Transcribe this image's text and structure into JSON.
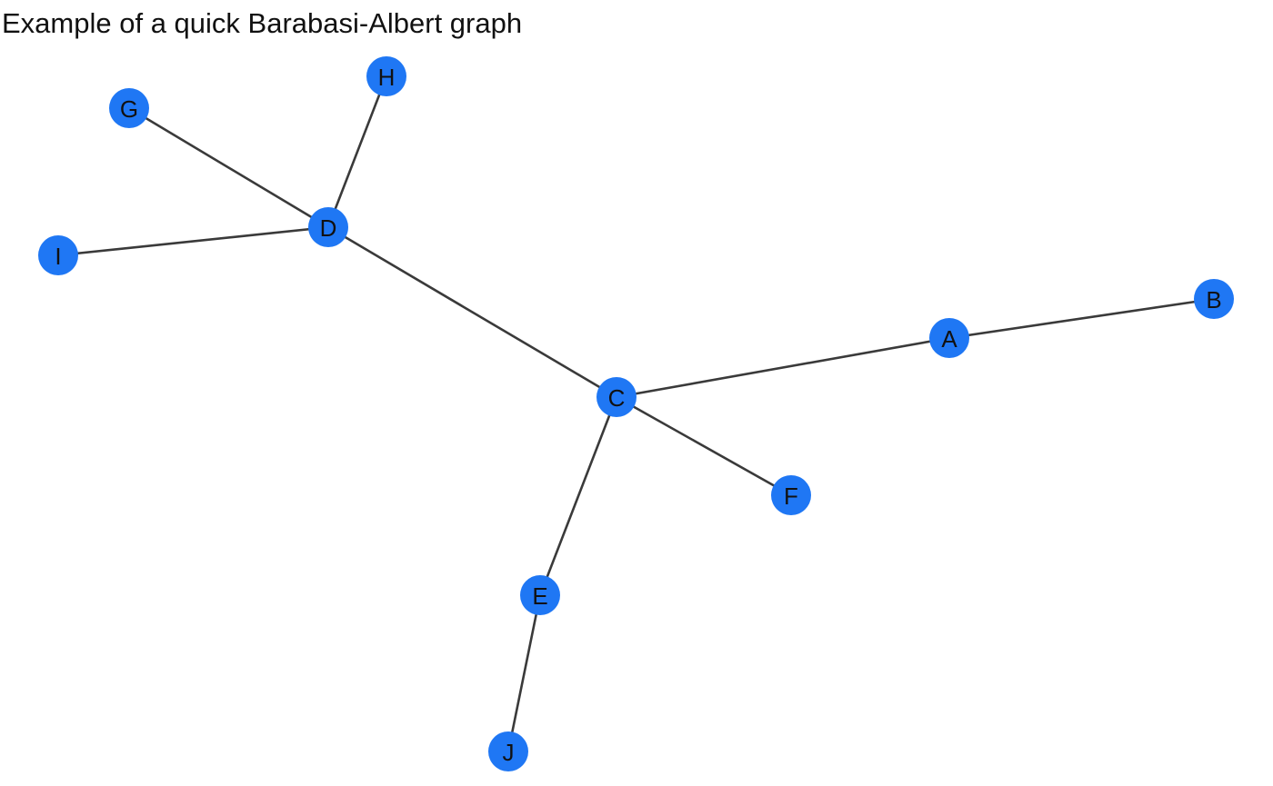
{
  "diagram": {
    "title": "Example of a quick Barabasi-Albert graph",
    "node_color": "#1f77f4",
    "edge_color": "#3a3a3a",
    "nodes": [
      {
        "id": "A",
        "label": "A"
      },
      {
        "id": "B",
        "label": "B"
      },
      {
        "id": "C",
        "label": "C"
      },
      {
        "id": "D",
        "label": "D"
      },
      {
        "id": "E",
        "label": "E"
      },
      {
        "id": "F",
        "label": "F"
      },
      {
        "id": "G",
        "label": "G"
      },
      {
        "id": "H",
        "label": "H"
      },
      {
        "id": "I",
        "label": "I"
      },
      {
        "id": "J",
        "label": "J"
      }
    ],
    "edges": [
      {
        "source": "A",
        "target": "B"
      },
      {
        "source": "A",
        "target": "C"
      },
      {
        "source": "C",
        "target": "D"
      },
      {
        "source": "C",
        "target": "E"
      },
      {
        "source": "C",
        "target": "F"
      },
      {
        "source": "D",
        "target": "G"
      },
      {
        "source": "D",
        "target": "H"
      },
      {
        "source": "D",
        "target": "I"
      },
      {
        "source": "E",
        "target": "J"
      }
    ]
  }
}
